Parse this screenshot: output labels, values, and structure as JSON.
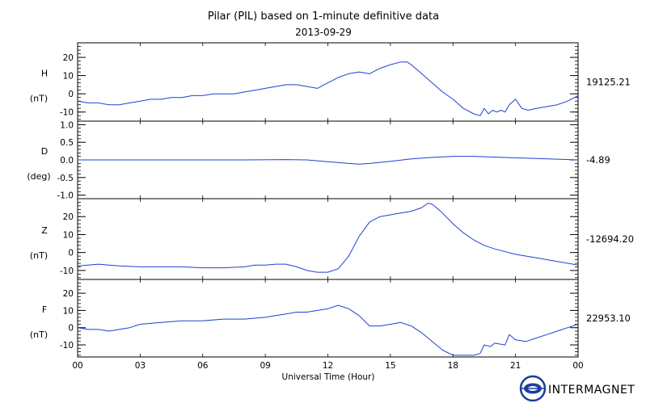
{
  "title": "Pilar (PIL) based on 1-minute definitive data",
  "subtitle": "2013-09-29",
  "x_axis": {
    "label": "Universal Time (Hour)",
    "ticks": [
      "00",
      "03",
      "06",
      "09",
      "12",
      "15",
      "18",
      "21",
      "00"
    ],
    "range_hours": [
      0,
      24
    ]
  },
  "brand": "INTERMAGNET",
  "colors": {
    "trace": "#2040d0",
    "axes": "#000000"
  },
  "chart_data": [
    {
      "type": "line",
      "component": "H",
      "unit": "(nT)",
      "baseline": "19125.21",
      "ylim": [
        -15,
        28
      ],
      "yticks": [
        -10,
        0,
        10,
        20
      ],
      "x": [
        0,
        0.5,
        1,
        1.5,
        2,
        2.5,
        3,
        3.5,
        4,
        4.5,
        5,
        5.5,
        6,
        6.5,
        7,
        7.5,
        8,
        8.5,
        9,
        9.5,
        10,
        10.5,
        11,
        11.5,
        12,
        12.5,
        13,
        13.5,
        14,
        14.5,
        15,
        15.5,
        15.8,
        16,
        16.5,
        17,
        17.5,
        18,
        18.5,
        19,
        19.3,
        19.5,
        19.7,
        19.9,
        20.1,
        20.3,
        20.5,
        20.7,
        21,
        21.3,
        21.6,
        22,
        22.5,
        23,
        23.5,
        24
      ],
      "y": [
        -4,
        -5,
        -5,
        -6,
        -6,
        -5,
        -4,
        -3,
        -3,
        -2,
        -2,
        -1,
        -1,
        0,
        0,
        0,
        1,
        2,
        3,
        4,
        5,
        5,
        4,
        3,
        6,
        9,
        11,
        12,
        11,
        14,
        16,
        17.5,
        17.5,
        16,
        11,
        6,
        1,
        -3,
        -8,
        -11,
        -12,
        -8,
        -11,
        -9,
        -10,
        -9,
        -10,
        -6,
        -3,
        -8,
        -9,
        -8,
        -7,
        -6,
        -4,
        -1
      ]
    },
    {
      "type": "line",
      "component": "D",
      "unit": "(deg)",
      "baseline": "-4.89",
      "ylim": [
        -1.1,
        1.1
      ],
      "yticks": [
        -1.0,
        -0.5,
        0.0,
        0.5,
        1.0
      ],
      "x": [
        0,
        2,
        4,
        6,
        8,
        10,
        11,
        12,
        13,
        13.5,
        14,
        15,
        16,
        17,
        18,
        19,
        20,
        21,
        22,
        23,
        24
      ],
      "y": [
        0.0,
        0.0,
        0.0,
        0.0,
        0.0,
        0.01,
        0.0,
        -0.05,
        -0.1,
        -0.12,
        -0.1,
        -0.04,
        0.03,
        0.07,
        0.1,
        0.1,
        0.08,
        0.06,
        0.04,
        0.02,
        0.0
      ]
    },
    {
      "type": "line",
      "component": "Z",
      "unit": "(nT)",
      "baseline": "-12694.20",
      "ylim": [
        -15,
        30
      ],
      "yticks": [
        -10,
        0,
        10,
        20
      ],
      "x": [
        0,
        0.5,
        1,
        1.5,
        2,
        3,
        4,
        5,
        6,
        7,
        8,
        8.5,
        9,
        9.5,
        10,
        10.5,
        11,
        11.5,
        12,
        12.5,
        13,
        13.5,
        14,
        14.5,
        15,
        15.5,
        16,
        16.5,
        16.8,
        17,
        17.5,
        18,
        18.5,
        19,
        19.5,
        20,
        21,
        22,
        23,
        24
      ],
      "y": [
        -7.5,
        -7,
        -6.5,
        -7,
        -7.5,
        -8,
        -8,
        -8,
        -8.5,
        -8.5,
        -8,
        -7,
        -7,
        -6.5,
        -6.5,
        -8,
        -10,
        -11,
        -11,
        -9,
        -2,
        9,
        17,
        20,
        21,
        22,
        23,
        25,
        27.5,
        27,
        22,
        16,
        11,
        7,
        4,
        2,
        -1,
        -3,
        -5,
        -7
      ]
    },
    {
      "type": "line",
      "component": "F",
      "unit": "(nT)",
      "baseline": "22953.10",
      "ylim": [
        -17,
        28
      ],
      "yticks": [
        -10,
        0,
        10,
        20
      ],
      "x": [
        0,
        0.5,
        1,
        1.5,
        2,
        2.5,
        3,
        4,
        5,
        6,
        7,
        8,
        9,
        9.5,
        10,
        10.5,
        11,
        11.5,
        12,
        12.5,
        13,
        13.5,
        14,
        14.5,
        15,
        15.5,
        16,
        16.5,
        17,
        17.5,
        18,
        18.5,
        19,
        19.3,
        19.5,
        19.8,
        20,
        20.5,
        20.7,
        21,
        21.5,
        22,
        22.5,
        23,
        23.5,
        24
      ],
      "y": [
        0,
        -1,
        -1,
        -2,
        -1,
        0,
        2,
        3,
        4,
        4,
        5,
        5,
        6,
        7,
        8,
        9,
        9,
        10,
        11,
        13,
        11,
        7,
        1,
        1,
        2,
        3,
        1,
        -3,
        -8,
        -13,
        -16,
        -16,
        -16,
        -15,
        -10,
        -11,
        -9,
        -10,
        -4,
        -7,
        -8,
        -6,
        -4,
        -2,
        0,
        2
      ]
    }
  ]
}
